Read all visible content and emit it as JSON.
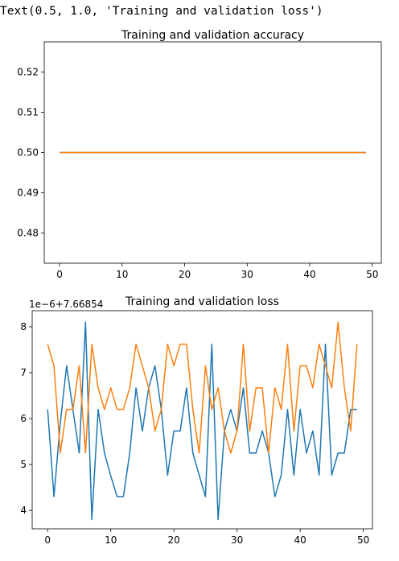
{
  "output_text": "Text(0.5, 1.0, 'Training and validation loss')",
  "colors": {
    "series1": "#1f77b4",
    "series2": "#ff7f0e",
    "axes": "#000000"
  },
  "chart_data": [
    {
      "type": "line",
      "title": "Training and validation accuracy",
      "xlabel": "",
      "ylabel": "",
      "xlim": [
        -2.45,
        51.45
      ],
      "ylim": [
        0.4725,
        0.5275
      ],
      "xticks": [
        0,
        10,
        20,
        30,
        40,
        50
      ],
      "yticks": [
        0.48,
        0.49,
        0.5,
        0.51,
        0.52
      ],
      "ytick_labels": [
        "0.48",
        "0.49",
        "0.50",
        "0.51",
        "0.52"
      ],
      "x": [
        0,
        1,
        2,
        3,
        4,
        5,
        6,
        7,
        8,
        9,
        10,
        11,
        12,
        13,
        14,
        15,
        16,
        17,
        18,
        19,
        20,
        21,
        22,
        23,
        24,
        25,
        26,
        27,
        28,
        29,
        30,
        31,
        32,
        33,
        34,
        35,
        36,
        37,
        38,
        39,
        40,
        41,
        42,
        43,
        44,
        45,
        46,
        47,
        48,
        49
      ],
      "series": [
        {
          "color": "#1f77b4",
          "values": [
            0.5,
            0.5,
            0.5,
            0.5,
            0.5,
            0.5,
            0.5,
            0.5,
            0.5,
            0.5,
            0.5,
            0.5,
            0.5,
            0.5,
            0.5,
            0.5,
            0.5,
            0.5,
            0.5,
            0.5,
            0.5,
            0.5,
            0.5,
            0.5,
            0.5,
            0.5,
            0.5,
            0.5,
            0.5,
            0.5,
            0.5,
            0.5,
            0.5,
            0.5,
            0.5,
            0.5,
            0.5,
            0.5,
            0.5,
            0.5,
            0.5,
            0.5,
            0.5,
            0.5,
            0.5,
            0.5,
            0.5,
            0.5,
            0.5,
            0.5
          ]
        },
        {
          "color": "#ff7f0e",
          "values": [
            0.5,
            0.5,
            0.5,
            0.5,
            0.5,
            0.5,
            0.5,
            0.5,
            0.5,
            0.5,
            0.5,
            0.5,
            0.5,
            0.5,
            0.5,
            0.5,
            0.5,
            0.5,
            0.5,
            0.5,
            0.5,
            0.5,
            0.5,
            0.5,
            0.5,
            0.5,
            0.5,
            0.5,
            0.5,
            0.5,
            0.5,
            0.5,
            0.5,
            0.5,
            0.5,
            0.5,
            0.5,
            0.5,
            0.5,
            0.5,
            0.5,
            0.5,
            0.5,
            0.5,
            0.5,
            0.5,
            0.5,
            0.5,
            0.5,
            0.5
          ]
        }
      ]
    },
    {
      "type": "line",
      "title": "Training and validation loss",
      "offset_text": "1e−6+7.66854",
      "xlabel": "",
      "ylabel": "",
      "xlim": [
        -2.45,
        51.45
      ],
      "ylim": [
        3.6,
        8.35
      ],
      "xticks": [
        0,
        10,
        20,
        30,
        40,
        50
      ],
      "yticks": [
        4,
        5,
        6,
        7,
        8
      ],
      "ytick_labels": [
        "4",
        "5",
        "6",
        "7",
        "8"
      ],
      "x": [
        0,
        1,
        2,
        3,
        4,
        5,
        6,
        7,
        8,
        9,
        10,
        11,
        12,
        13,
        14,
        15,
        16,
        17,
        18,
        19,
        20,
        21,
        22,
        23,
        24,
        25,
        26,
        27,
        28,
        29,
        30,
        31,
        32,
        33,
        34,
        35,
        36,
        37,
        38,
        39,
        40,
        41,
        42,
        43,
        44,
        45,
        46,
        47,
        48,
        49
      ],
      "series": [
        {
          "color": "#1f77b4",
          "values": [
            6.2,
            4.3,
            5.9,
            7.15,
            6.2,
            5.25,
            8.1,
            3.8,
            6.2,
            5.25,
            4.75,
            4.3,
            4.3,
            5.25,
            6.67,
            5.73,
            6.67,
            7.15,
            6.2,
            4.77,
            5.73,
            5.73,
            6.67,
            5.25,
            4.77,
            4.3,
            7.62,
            3.8,
            5.73,
            6.2,
            5.73,
            6.67,
            5.25,
            5.25,
            5.73,
            5.25,
            4.3,
            4.77,
            6.2,
            4.77,
            6.2,
            5.25,
            5.73,
            4.77,
            7.62,
            4.77,
            5.25,
            5.25,
            6.2,
            6.2
          ]
        },
        {
          "color": "#ff7f0e",
          "values": [
            7.62,
            7.15,
            5.25,
            6.2,
            6.2,
            7.15,
            5.25,
            7.62,
            6.67,
            6.2,
            6.67,
            6.2,
            6.2,
            6.67,
            7.62,
            7.15,
            6.67,
            5.73,
            6.2,
            7.62,
            7.15,
            7.62,
            7.62,
            6.2,
            5.25,
            7.15,
            6.2,
            6.67,
            5.73,
            5.25,
            5.73,
            7.62,
            5.73,
            6.67,
            6.67,
            5.25,
            6.67,
            6.2,
            7.62,
            5.73,
            7.15,
            7.15,
            6.67,
            7.62,
            7.15,
            6.67,
            8.1,
            6.67,
            5.73,
            7.62
          ]
        }
      ]
    }
  ]
}
